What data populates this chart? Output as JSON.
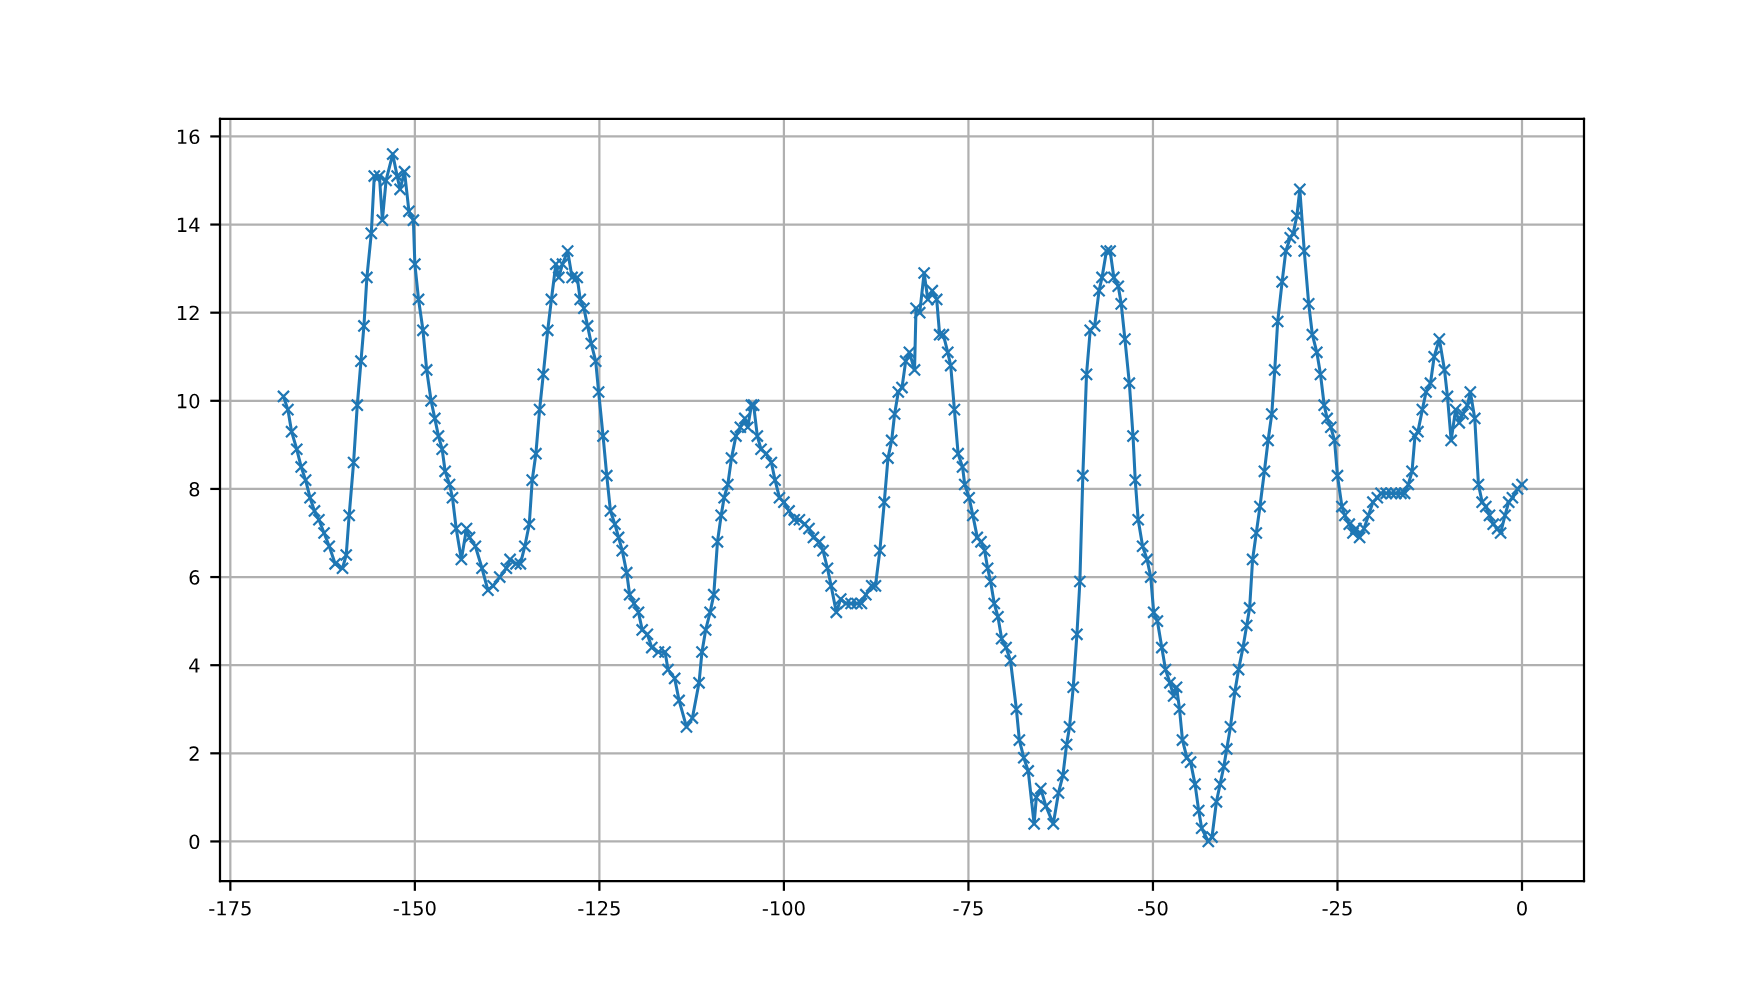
{
  "chart_data": {
    "type": "line",
    "marker": "cross",
    "grid": true,
    "xlim": [
      -176.4,
      8.4
    ],
    "xticks": [
      -175,
      -150,
      -125,
      -100,
      -75,
      -50,
      -25,
      0
    ],
    "ylim": [
      -0.9,
      16.4
    ],
    "yticks": [
      0,
      2,
      4,
      6,
      8,
      10,
      12,
      14,
      16
    ],
    "series": [
      {
        "color": "#1f77b4",
        "x": [
          -167.8,
          -167.2,
          -166.7,
          -166.0,
          -165.4,
          -164.8,
          -164.2,
          -163.6,
          -163.0,
          -162.3,
          -161.6,
          -160.8,
          -159.8,
          -159.3,
          -158.9,
          -158.3,
          -157.8,
          -157.3,
          -156.9,
          -156.5,
          -155.9,
          -155.5,
          -154.8,
          -154.4,
          -153.9,
          -153.0,
          -152.4,
          -152.0,
          -151.4,
          -150.8,
          -150.2,
          -150.0,
          -149.5,
          -148.9,
          -148.4,
          -147.8,
          -147.3,
          -146.8,
          -146.3,
          -145.9,
          -145.3,
          -144.9,
          -144.4,
          -143.7,
          -143.0,
          -142.6,
          -141.8,
          -140.9,
          -140.1,
          -139.4,
          -138.5,
          -137.6,
          -137.1,
          -136.3,
          -135.7,
          -135.1,
          -134.5,
          -134.1,
          -133.6,
          -133.1,
          -132.6,
          -132.0,
          -131.5,
          -130.9,
          -130.5,
          -130.0,
          -129.3,
          -128.7,
          -128.0,
          -127.6,
          -127.1,
          -126.6,
          -126.1,
          -125.5,
          -125.1,
          -124.5,
          -124.0,
          -123.5,
          -122.9,
          -122.4,
          -121.9,
          -121.3,
          -120.9,
          -120.3,
          -119.7,
          -119.2,
          -118.5,
          -117.9,
          -117.0,
          -116.1,
          -115.7,
          -114.8,
          -114.2,
          -113.2,
          -112.4,
          -111.5,
          -111.1,
          -110.6,
          -110.0,
          -109.5,
          -109.0,
          -108.5,
          -108.1,
          -107.6,
          -107.1,
          -106.5,
          -105.9,
          -105.3,
          -104.9,
          -104.4,
          -104.1,
          -103.6,
          -103.1,
          -102.4,
          -101.7,
          -101.2,
          -100.6,
          -100.0,
          -99.3,
          -98.6,
          -97.9,
          -97.2,
          -96.6,
          -96.0,
          -95.2,
          -94.7,
          -94.1,
          -93.6,
          -92.9,
          -92.3,
          -91.6,
          -90.9,
          -90.1,
          -89.5,
          -88.9,
          -88.1,
          -87.6,
          -87.0,
          -86.4,
          -85.9,
          -85.4,
          -85.0,
          -84.5,
          -84.0,
          -83.5,
          -83.0,
          -82.3,
          -82.1,
          -81.6,
          -81.0,
          -80.5,
          -79.9,
          -79.3,
          -78.9,
          -78.4,
          -77.8,
          -77.4,
          -76.9,
          -76.4,
          -75.8,
          -75.5,
          -74.9,
          -74.4,
          -73.8,
          -73.3,
          -72.8,
          -72.4,
          -72.0,
          -71.5,
          -71.0,
          -70.5,
          -69.9,
          -69.3,
          -68.5,
          -68.1,
          -67.5,
          -66.9,
          -66.1,
          -65.8,
          -65.2,
          -64.5,
          -63.5,
          -62.8,
          -62.2,
          -61.7,
          -61.3,
          -60.8,
          -60.3,
          -59.9,
          -59.5,
          -59.0,
          -58.5,
          -57.9,
          -57.3,
          -56.9,
          -56.3,
          -55.8,
          -55.3,
          -54.7,
          -54.3,
          -53.8,
          -53.2,
          -52.7,
          -52.4,
          -52.0,
          -51.4,
          -50.8,
          -50.3,
          -49.9,
          -49.4,
          -48.8,
          -48.3,
          -47.7,
          -47.2,
          -46.8,
          -46.4,
          -46.0,
          -45.4,
          -44.9,
          -44.3,
          -43.8,
          -43.4,
          -42.5,
          -42.0,
          -41.4,
          -40.9,
          -40.4,
          -40.0,
          -39.5,
          -38.9,
          -38.4,
          -37.8,
          -37.3,
          -36.9,
          -36.5,
          -36.0,
          -35.5,
          -34.9,
          -34.4,
          -33.9,
          -33.5,
          -33.1,
          -32.5,
          -32.0,
          -31.4,
          -31.0,
          -30.5,
          -30.1,
          -29.5,
          -28.9,
          -28.4,
          -27.8,
          -27.3,
          -26.8,
          -26.4,
          -25.9,
          -25.4,
          -25.0,
          -24.4,
          -24.0,
          -23.4,
          -22.9,
          -22.5,
          -22.0,
          -21.4,
          -20.8,
          -20.2,
          -19.6,
          -19.1,
          -18.4,
          -17.7,
          -17.1,
          -16.4,
          -15.9,
          -15.4,
          -14.9,
          -14.5,
          -14.1,
          -13.5,
          -13.0,
          -12.4,
          -11.9,
          -11.2,
          -10.5,
          -10.1,
          -9.6,
          -9.0,
          -8.5,
          -8.0,
          -7.4,
          -7.0,
          -6.4,
          -5.9,
          -5.4,
          -4.9,
          -4.4,
          -3.9,
          -3.3,
          -2.9,
          -2.3,
          -1.8,
          -1.3,
          -0.6,
          0.0
        ],
        "values": [
          10.1,
          9.8,
          9.3,
          8.9,
          8.5,
          8.2,
          7.8,
          7.5,
          7.3,
          7.0,
          6.7,
          6.3,
          6.2,
          6.5,
          7.4,
          8.6,
          9.9,
          10.9,
          11.7,
          12.8,
          13.8,
          15.1,
          15.1,
          14.1,
          15.0,
          15.6,
          15.1,
          14.8,
          15.2,
          14.3,
          14.1,
          13.1,
          12.3,
          11.6,
          10.7,
          10.0,
          9.6,
          9.2,
          8.9,
          8.4,
          8.1,
          7.8,
          7.1,
          6.4,
          7.1,
          6.9,
          6.7,
          6.2,
          5.7,
          5.8,
          6.0,
          6.2,
          6.4,
          6.3,
          6.3,
          6.7,
          7.2,
          8.2,
          8.8,
          9.8,
          10.6,
          11.6,
          12.3,
          13.1,
          12.8,
          13.1,
          13.4,
          12.8,
          12.8,
          12.3,
          12.1,
          11.7,
          11.3,
          10.9,
          10.2,
          9.2,
          8.3,
          7.5,
          7.2,
          6.9,
          6.6,
          6.1,
          5.6,
          5.4,
          5.2,
          4.8,
          4.7,
          4.4,
          4.3,
          4.3,
          3.9,
          3.7,
          3.2,
          2.6,
          2.8,
          3.6,
          4.3,
          4.8,
          5.2,
          5.6,
          6.8,
          7.4,
          7.8,
          8.1,
          8.7,
          9.2,
          9.4,
          9.6,
          9.4,
          9.9,
          9.9,
          9.2,
          8.9,
          8.8,
          8.6,
          8.2,
          7.8,
          7.7,
          7.5,
          7.3,
          7.3,
          7.2,
          7.1,
          6.9,
          6.8,
          6.6,
          6.2,
          5.8,
          5.2,
          5.5,
          5.4,
          5.4,
          5.4,
          5.4,
          5.6,
          5.8,
          5.8,
          6.6,
          7.7,
          8.7,
          9.1,
          9.7,
          10.2,
          10.3,
          10.9,
          11.1,
          10.7,
          12.1,
          12.0,
          12.9,
          12.3,
          12.5,
          12.3,
          11.5,
          11.5,
          11.1,
          10.8,
          9.8,
          8.8,
          8.5,
          8.1,
          7.8,
          7.4,
          6.9,
          6.8,
          6.6,
          6.2,
          5.9,
          5.4,
          5.1,
          4.6,
          4.4,
          4.1,
          3.0,
          2.3,
          1.9,
          1.6,
          0.4,
          1.0,
          1.2,
          0.8,
          0.4,
          1.1,
          1.5,
          2.2,
          2.6,
          3.5,
          4.7,
          5.9,
          8.3,
          10.6,
          11.6,
          11.7,
          12.5,
          12.8,
          13.4,
          13.4,
          12.8,
          12.6,
          12.2,
          11.4,
          10.4,
          9.2,
          8.2,
          7.3,
          6.7,
          6.4,
          6.0,
          5.2,
          5.0,
          4.4,
          3.9,
          3.6,
          3.3,
          3.5,
          3.0,
          2.3,
          1.9,
          1.8,
          1.3,
          0.7,
          0.3,
          0.0,
          0.1,
          0.9,
          1.3,
          1.7,
          2.1,
          2.6,
          3.4,
          3.9,
          4.4,
          4.9,
          5.3,
          6.4,
          7.0,
          7.6,
          8.4,
          9.1,
          9.7,
          10.7,
          11.8,
          12.7,
          13.4,
          13.7,
          13.8,
          14.2,
          14.8,
          13.4,
          12.2,
          11.5,
          11.1,
          10.6,
          9.9,
          9.6,
          9.4,
          9.1,
          8.3,
          7.6,
          7.4,
          7.2,
          7.0,
          7.1,
          6.9,
          7.1,
          7.4,
          7.7,
          7.8,
          7.9,
          7.9,
          7.9,
          7.9,
          7.9,
          7.9,
          8.1,
          8.4,
          9.2,
          9.3,
          9.8,
          10.2,
          10.4,
          11.0,
          11.4,
          10.7,
          10.1,
          9.1,
          9.8,
          9.5,
          9.7,
          9.9,
          10.2,
          9.6,
          8.1,
          7.7,
          7.6,
          7.4,
          7.2,
          7.1,
          7.0,
          7.4,
          7.7,
          7.8,
          8.0,
          8.1
        ]
      }
    ]
  }
}
